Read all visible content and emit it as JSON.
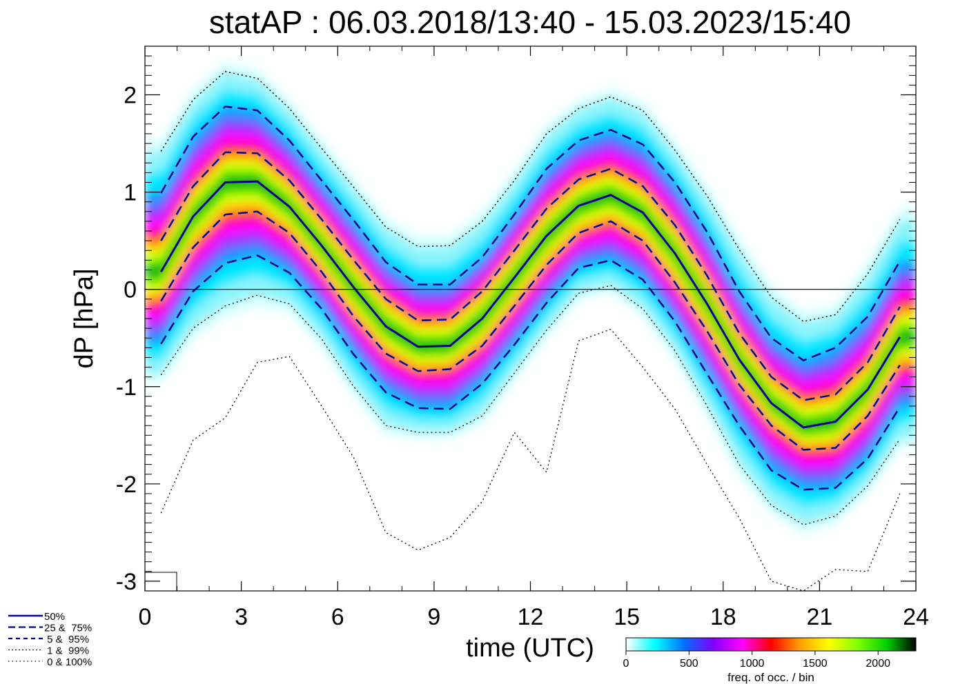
{
  "chart_data": {
    "type": "line",
    "title": "statAP : 06.03.2018/13:40 - 15.03.2023/15:40",
    "xlabel": "time (UTC)",
    "ylabel": "dP [hPa]",
    "xlim": [
      0,
      24
    ],
    "ylim": [
      -3.1,
      2.5
    ],
    "xticks": [
      0,
      3,
      6,
      9,
      12,
      15,
      18,
      21,
      24
    ],
    "yticks": [
      -3,
      -2,
      -1,
      0,
      1,
      2
    ],
    "x": [
      0.5,
      1.5,
      2.5,
      3.5,
      4.5,
      5.5,
      6.5,
      7.5,
      8.5,
      9.5,
      10.5,
      11.5,
      12.5,
      13.5,
      14.5,
      15.5,
      16.5,
      17.5,
      18.5,
      19.5,
      20.5,
      21.5,
      22.5,
      23.5
    ],
    "series": [
      {
        "name": "50%",
        "style": "solid",
        "values": [
          0.18,
          0.75,
          1.1,
          1.11,
          0.85,
          0.45,
          0.02,
          -0.38,
          -0.59,
          -0.58,
          -0.3,
          0.12,
          0.55,
          0.86,
          0.97,
          0.79,
          0.37,
          -0.15,
          -0.72,
          -1.17,
          -1.42,
          -1.36,
          -1.03,
          -0.49
        ]
      },
      {
        "name": "25%",
        "style": "dashed",
        "values": [
          -0.12,
          0.43,
          0.77,
          0.8,
          0.58,
          0.18,
          -0.28,
          -0.66,
          -0.84,
          -0.82,
          -0.58,
          -0.17,
          0.25,
          0.58,
          0.7,
          0.5,
          0.07,
          -0.43,
          -0.98,
          -1.4,
          -1.65,
          -1.63,
          -1.3,
          -0.78
        ]
      },
      {
        "name": "75%",
        "style": "dashed",
        "values": [
          0.5,
          1.06,
          1.41,
          1.4,
          1.12,
          0.72,
          0.3,
          -0.1,
          -0.32,
          -0.31,
          -0.02,
          0.4,
          0.83,
          1.13,
          1.24,
          1.06,
          0.66,
          0.14,
          -0.45,
          -0.9,
          -1.14,
          -1.08,
          -0.75,
          -0.18
        ]
      },
      {
        "name": "5%",
        "style": "dashed",
        "values": [
          -0.56,
          -0.02,
          0.27,
          0.35,
          0.17,
          -0.2,
          -0.67,
          -1.06,
          -1.22,
          -1.23,
          -0.97,
          -0.57,
          -0.14,
          0.22,
          0.3,
          0.1,
          -0.33,
          -0.87,
          -1.4,
          -1.86,
          -2.06,
          -2.04,
          -1.74,
          -1.21
        ]
      },
      {
        "name": "95%",
        "style": "dashed",
        "values": [
          0.99,
          1.57,
          1.88,
          1.84,
          1.53,
          1.12,
          0.71,
          0.28,
          0.05,
          0.05,
          0.33,
          0.77,
          1.24,
          1.53,
          1.64,
          1.49,
          1.1,
          0.59,
          -0.02,
          -0.5,
          -0.73,
          -0.6,
          -0.28,
          0.29
        ]
      },
      {
        "name": "1%",
        "style": "dotted",
        "values": [
          -0.88,
          -0.4,
          -0.17,
          -0.06,
          -0.15,
          -0.51,
          -1.0,
          -1.4,
          -1.47,
          -1.47,
          -1.3,
          -0.86,
          -0.42,
          -0.04,
          0.04,
          -0.2,
          -0.63,
          -1.2,
          -1.8,
          -2.22,
          -2.42,
          -2.33,
          -2.02,
          -1.54
        ]
      },
      {
        "name": "99%",
        "style": "dotted",
        "values": [
          1.42,
          1.95,
          2.24,
          2.17,
          1.86,
          1.45,
          1.05,
          0.64,
          0.44,
          0.45,
          0.7,
          1.12,
          1.6,
          1.86,
          1.98,
          1.84,
          1.43,
          0.96,
          0.41,
          -0.08,
          -0.33,
          -0.26,
          0.16,
          0.72
        ]
      },
      {
        "name": "0%",
        "style": "dotted",
        "values": [
          -2.3,
          -1.55,
          -1.32,
          -0.75,
          -0.69,
          -1.2,
          -1.73,
          -2.5,
          -2.68,
          -2.55,
          -2.18,
          -1.47,
          -1.88,
          -0.53,
          -0.41,
          -0.8,
          -1.23,
          -1.8,
          -2.35,
          -3.0,
          -3.1,
          -2.88,
          -2.9,
          -2.1
        ]
      },
      {
        "name": "100%",
        "style": "dotted",
        "values": [
          1.42,
          1.95,
          2.24,
          2.17,
          1.86,
          1.45,
          1.05,
          0.64,
          0.44,
          0.45,
          0.7,
          1.12,
          1.6,
          1.86,
          1.98,
          1.84,
          1.43,
          0.96,
          0.41,
          -0.08,
          -0.33,
          -0.26,
          0.16,
          0.72
        ]
      }
    ],
    "legend": [
      {
        "label": "50%",
        "style": "solid"
      },
      {
        "label": "25 &  75%",
        "style": "dashed"
      },
      {
        "label": " 5 &  95%",
        "style": "dashed"
      },
      {
        "label": " 1 &  99%",
        "style": "dotted"
      },
      {
        "label": " 0 & 100%",
        "style": "dotted"
      }
    ],
    "colorbar": {
      "label": "freq. of occ. / bin",
      "range": [
        0,
        2300
      ],
      "ticks": [
        0,
        500,
        1000,
        1500,
        2000
      ],
      "colors": [
        "#ffffff",
        "#00ffff",
        "#0070ff",
        "#8000ff",
        "#ff00ff",
        "#ff0000",
        "#ffa000",
        "#ffff00",
        "#80ff00",
        "#00d000",
        "#000000"
      ]
    },
    "line_color": "#00008b",
    "zero_line": 0
  }
}
